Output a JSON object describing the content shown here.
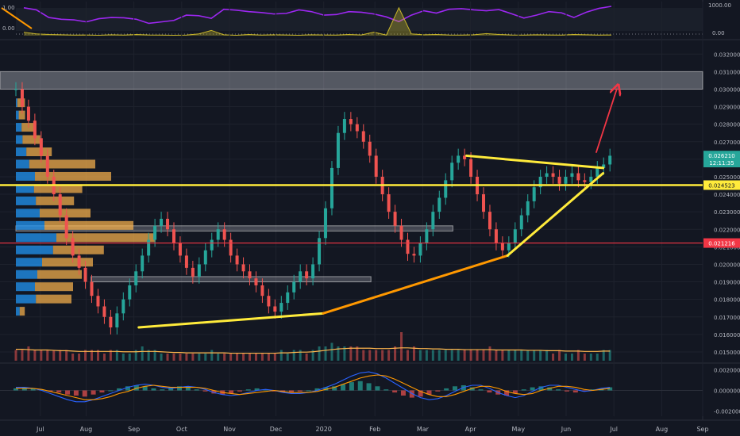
{
  "chart_data": [
    {
      "type": "line",
      "panel": "oscillator",
      "ylim": [
        0,
        1000
      ],
      "right_ticks": [
        "1000.00",
        "0.00"
      ],
      "left_ticks": [
        "1.00",
        "0.00"
      ],
      "series": [
        {
          "color": "#9c27f0",
          "values": [
            950,
            880,
            620,
            560,
            540,
            470,
            580,
            620,
            610,
            560,
            420,
            470,
            520,
            700,
            680,
            590,
            900,
            870,
            820,
            790,
            740,
            760,
            880,
            820,
            700,
            720,
            820,
            800,
            740,
            640,
            480,
            700,
            850,
            770,
            900,
            920,
            880,
            850,
            890,
            750,
            600,
            700,
            820,
            780,
            620,
            800,
            930,
            1000
          ]
        },
        {
          "color": "#c9b62a",
          "values": [
            120,
            60,
            40,
            30,
            20,
            25,
            15,
            30,
            20,
            40,
            25,
            20,
            15,
            20,
            60,
            180,
            30,
            15,
            40,
            20,
            30,
            25,
            15,
            30,
            25,
            20,
            40,
            25,
            120,
            20,
            950,
            60,
            30,
            40,
            25,
            20,
            30,
            70,
            40,
            25,
            20,
            30,
            25,
            20,
            40,
            30,
            20,
            25
          ]
        }
      ]
    },
    {
      "type": "candlestick",
      "panel": "price",
      "ylim": [
        0.0145,
        0.0326
      ],
      "y_ticks": [
        "0.032000",
        "0.031000",
        "0.030000",
        "0.029000",
        "0.028000",
        "0.027000",
        "0.026000",
        "0.025000",
        "0.024000",
        "0.023000",
        "0.022000",
        "0.021000",
        "0.020000",
        "0.019000",
        "0.018000",
        "0.017000",
        "0.016000",
        "0.015000"
      ],
      "x_ticks": [
        "Jul",
        "Aug",
        "Sep",
        "Oct",
        "Nov",
        "Dec",
        "2020",
        "Feb",
        "Mar",
        "Apr",
        "May",
        "Jun",
        "Jul",
        "Aug",
        "Sep"
      ],
      "closes": [
        0.03,
        0.029,
        0.0282,
        0.0272,
        0.0262,
        0.025,
        0.024,
        0.0228,
        0.0215,
        0.0205,
        0.0198,
        0.019,
        0.0182,
        0.0176,
        0.017,
        0.0164,
        0.0172,
        0.018,
        0.0188,
        0.0196,
        0.0205,
        0.0214,
        0.0222,
        0.0226,
        0.022,
        0.0212,
        0.0205,
        0.0198,
        0.0193,
        0.02,
        0.0208,
        0.0214,
        0.022,
        0.0214,
        0.0205,
        0.02,
        0.0196,
        0.0192,
        0.0188,
        0.0182,
        0.0176,
        0.0173,
        0.0178,
        0.0184,
        0.019,
        0.0196,
        0.0192,
        0.02,
        0.0215,
        0.0232,
        0.0255,
        0.0275,
        0.0283,
        0.028,
        0.0276,
        0.027,
        0.0262,
        0.025,
        0.024,
        0.023,
        0.0222,
        0.0214,
        0.0206,
        0.0205,
        0.0212,
        0.022,
        0.023,
        0.0238,
        0.0248,
        0.0258,
        0.0262,
        0.026,
        0.025,
        0.024,
        0.023,
        0.022,
        0.0212,
        0.0208,
        0.0212,
        0.022,
        0.0228,
        0.0236,
        0.0244,
        0.025,
        0.0252,
        0.025,
        0.0246,
        0.025,
        0.0252,
        0.0248,
        0.0247,
        0.025,
        0.0255,
        0.0257,
        0.0262
      ],
      "volume_ylim": [
        0,
        10
      ],
      "volume": [
        3,
        3,
        4,
        3,
        3,
        3,
        3,
        3,
        3,
        2,
        2,
        3,
        3,
        3,
        2,
        3,
        3,
        2,
        2,
        3,
        4,
        3,
        3,
        2,
        2,
        2,
        2,
        2,
        2,
        2,
        2,
        3,
        2,
        2,
        2,
        2,
        2,
        2,
        2,
        2,
        2,
        2,
        3,
        2,
        3,
        3,
        2,
        3,
        4,
        4,
        5,
        4,
        4,
        4,
        4,
        3,
        3,
        3,
        3,
        3,
        4,
        8,
        3,
        4,
        3,
        3,
        3,
        3,
        3,
        3,
        3,
        3,
        3,
        3,
        3,
        4,
        3,
        3,
        3,
        3,
        3,
        3,
        3,
        3,
        3,
        2,
        3,
        2,
        2,
        3,
        2,
        2,
        2,
        3,
        3
      ],
      "volume_ma": [
        3.2,
        3.2,
        3.1,
        3.0,
        3.0,
        3.0,
        2.9,
        2.8,
        2.8,
        2.7,
        2.6,
        2.6,
        2.6,
        2.6,
        2.6,
        2.6,
        2.6,
        2.5,
        2.5,
        2.5,
        2.6,
        2.6,
        2.6,
        2.5,
        2.4,
        2.3,
        2.3,
        2.2,
        2.2,
        2.2,
        2.2,
        2.2,
        2.2,
        2.2,
        2.1,
        2.1,
        2.1,
        2.1,
        2.1,
        2.1,
        2.1,
        2.1,
        2.2,
        2.2,
        2.3,
        2.4,
        2.4,
        2.5,
        2.7,
        2.9,
        3.1,
        3.3,
        3.4,
        3.5,
        3.5,
        3.5,
        3.5,
        3.4,
        3.4,
        3.4,
        3.5,
        3.6,
        3.6,
        3.5,
        3.4,
        3.4,
        3.3,
        3.3,
        3.2,
        3.2,
        3.2,
        3.1,
        3.1,
        3.1,
        3.1,
        3.1,
        3.0,
        3.0,
        3.0,
        3.0,
        3.0,
        2.9,
        2.9,
        2.9,
        2.8,
        2.8,
        2.8,
        2.7,
        2.7,
        2.7,
        2.6,
        2.6,
        2.6,
        2.7,
        2.7
      ],
      "volume_profile": [
        {
          "price": 0.0292,
          "blue": 3,
          "orange": 6
        },
        {
          "price": 0.0285,
          "blue": 6,
          "orange": 5
        },
        {
          "price": 0.0278,
          "blue": 12,
          "orange": 10
        },
        {
          "price": 0.0271,
          "blue": 14,
          "orange": 14
        },
        {
          "price": 0.0264,
          "blue": 22,
          "orange": 20
        },
        {
          "price": 0.0257,
          "blue": 28,
          "orange": 52
        },
        {
          "price": 0.025,
          "blue": 40,
          "orange": 60
        },
        {
          "price": 0.0243,
          "blue": 38,
          "orange": 38
        },
        {
          "price": 0.0236,
          "blue": 42,
          "orange": 30
        },
        {
          "price": 0.0229,
          "blue": 50,
          "orange": 40
        },
        {
          "price": 0.0222,
          "blue": 60,
          "orange": 70
        },
        {
          "price": 0.0215,
          "blue": 85,
          "orange": 78
        },
        {
          "price": 0.0208,
          "blue": 78,
          "orange": 40
        },
        {
          "price": 0.0201,
          "blue": 55,
          "orange": 40
        },
        {
          "price": 0.0194,
          "blue": 45,
          "orange": 35
        },
        {
          "price": 0.0187,
          "blue": 40,
          "orange": 30
        },
        {
          "price": 0.018,
          "blue": 42,
          "orange": 28
        },
        {
          "price": 0.0173,
          "blue": 8,
          "orange": 4
        }
      ],
      "zones": [
        {
          "from": 0.03,
          "to": 0.031,
          "color": "rgba(206,209,218,0.35)"
        },
        {
          "from": 0.0219,
          "to": 0.0222,
          "x_from": 0.0,
          "x_to": 0.64,
          "color": "rgba(206,209,218,0.25)"
        },
        {
          "from": 0.019,
          "to": 0.0193,
          "x_from": 0.11,
          "x_to": 0.52,
          "color": "rgba(206,209,218,0.25)"
        }
      ],
      "levels": [
        {
          "value": 0.024523,
          "color": "#ffeb3b"
        },
        {
          "value": 0.021216,
          "color": "#f23645"
        }
      ],
      "trendlines": [
        {
          "color": "#ffeb3b",
          "points": [
            [
              0.18,
              0.0164
            ],
            [
              0.45,
              0.0172
            ]
          ]
        },
        {
          "color": "#ff9800",
          "points": [
            [
              0.45,
              0.0172
            ],
            [
              0.72,
              0.0205
            ]
          ]
        },
        {
          "color": "#ffeb3b",
          "points": [
            [
              0.72,
              0.0205
            ],
            [
              0.86,
              0.0252
            ]
          ]
        },
        {
          "color": "#ffeb3b",
          "points": [
            [
              0.66,
              0.0262
            ],
            [
              0.86,
              0.0255
            ]
          ]
        },
        {
          "color": "#f23645",
          "arrow": true,
          "points": [
            [
              0.85,
              0.0264
            ],
            [
              0.88,
              0.03
            ]
          ]
        }
      ],
      "price_tags": [
        {
          "value": 0.02621,
          "label": "0.026210",
          "bg": "#26a69a",
          "fg": "#ffffff"
        },
        {
          "value": 0.02581,
          "label": "12:11:35",
          "bg": "#26a69a",
          "fg": "#ffffff"
        },
        {
          "value": 0.024523,
          "label": "0.024523",
          "bg": "#ffeb3b",
          "fg": "#131722"
        },
        {
          "value": 0.021216,
          "label": "0.021216",
          "bg": "#f23645",
          "fg": "#ffffff"
        }
      ]
    },
    {
      "type": "histogram",
      "panel": "macd",
      "ylim": [
        -0.0025,
        0.0025
      ],
      "y_ticks": [
        "0.002000",
        "0.000000",
        "-0.002000"
      ],
      "histogram": [
        0.0002,
        0.0003,
        0.0002,
        0.0001,
        -0.0001,
        -0.0002,
        -0.0004,
        -0.0005,
        -0.0006,
        -0.0004,
        -0.0002,
        0.0,
        0.0002,
        0.0004,
        0.0005,
        0.0004,
        0.0002,
        0.0001,
        0.0003,
        0.0004,
        0.0003,
        0.0001,
        -0.0001,
        -0.0003,
        -0.0004,
        -0.0003,
        -0.0001,
        0.0001,
        0.0002,
        0.0001,
        -0.0001,
        -0.0002,
        -0.0002,
        -0.0001,
        0.0,
        0.0002,
        0.0003,
        0.0004,
        0.0006,
        0.0008,
        0.0009,
        0.0007,
        0.0004,
        0.0001,
        -0.0002,
        -0.0005,
        -0.0007,
        -0.0006,
        -0.0004,
        -0.0001,
        0.0002,
        0.0004,
        0.0005,
        0.0003,
        0.0001,
        -0.0002,
        -0.0004,
        -0.0005,
        -0.0003,
        0.0001,
        0.0003,
        0.0004,
        0.0003,
        0.0001,
        -0.0001,
        -0.0002,
        -0.0001,
        0.0001,
        0.0002,
        0.0003
      ],
      "macd": [
        0.0003,
        0.0003,
        0.0002,
        0.0,
        -0.0003,
        -0.0006,
        -0.0009,
        -0.0011,
        -0.0011,
        -0.0009,
        -0.0006,
        -0.0003,
        0.0,
        0.0003,
        0.0005,
        0.0006,
        0.0005,
        0.0003,
        0.0002,
        0.0003,
        0.0004,
        0.0003,
        0.0001,
        -0.0002,
        -0.0004,
        -0.0005,
        -0.0004,
        -0.0002,
        0.0,
        0.0001,
        0.0,
        -0.0002,
        -0.0003,
        -0.0003,
        -0.0002,
        0.0,
        0.0003,
        0.0006,
        0.001,
        0.0014,
        0.0017,
        0.0018,
        0.0016,
        0.0012,
        0.0007,
        0.0002,
        -0.0003,
        -0.0007,
        -0.0009,
        -0.0008,
        -0.0005,
        -0.0001,
        0.0003,
        0.0005,
        0.0005,
        0.0002,
        -0.0002,
        -0.0005,
        -0.0007,
        -0.0005,
        -0.0001,
        0.0003,
        0.0005,
        0.0005,
        0.0003,
        0.0001,
        -0.0001,
        0.0,
        0.0002,
        0.0003
      ],
      "signal": [
        0.0002,
        0.0002,
        0.0002,
        0.0001,
        -0.0001,
        -0.0003,
        -0.0005,
        -0.0007,
        -0.0009,
        -0.0009,
        -0.0008,
        -0.0006,
        -0.0003,
        -0.0001,
        0.0002,
        0.0004,
        0.0005,
        0.0004,
        0.0003,
        0.0003,
        0.0003,
        0.0003,
        0.0002,
        0.0,
        -0.0002,
        -0.0003,
        -0.0004,
        -0.0003,
        -0.0002,
        -0.0001,
        0.0,
        -0.0001,
        -0.0002,
        -0.0002,
        -0.0002,
        -0.0001,
        0.0001,
        0.0003,
        0.0006,
        0.0009,
        0.0012,
        0.0014,
        0.0015,
        0.0014,
        0.0011,
        0.0007,
        0.0003,
        -0.0001,
        -0.0004,
        -0.0006,
        -0.0006,
        -0.0004,
        -0.0001,
        0.0002,
        0.0004,
        0.0004,
        0.0002,
        -0.0001,
        -0.0003,
        -0.0004,
        -0.0003,
        0.0,
        0.0002,
        0.0004,
        0.0004,
        0.0003,
        0.0001,
        0.0,
        0.0001,
        0.0002
      ]
    }
  ]
}
